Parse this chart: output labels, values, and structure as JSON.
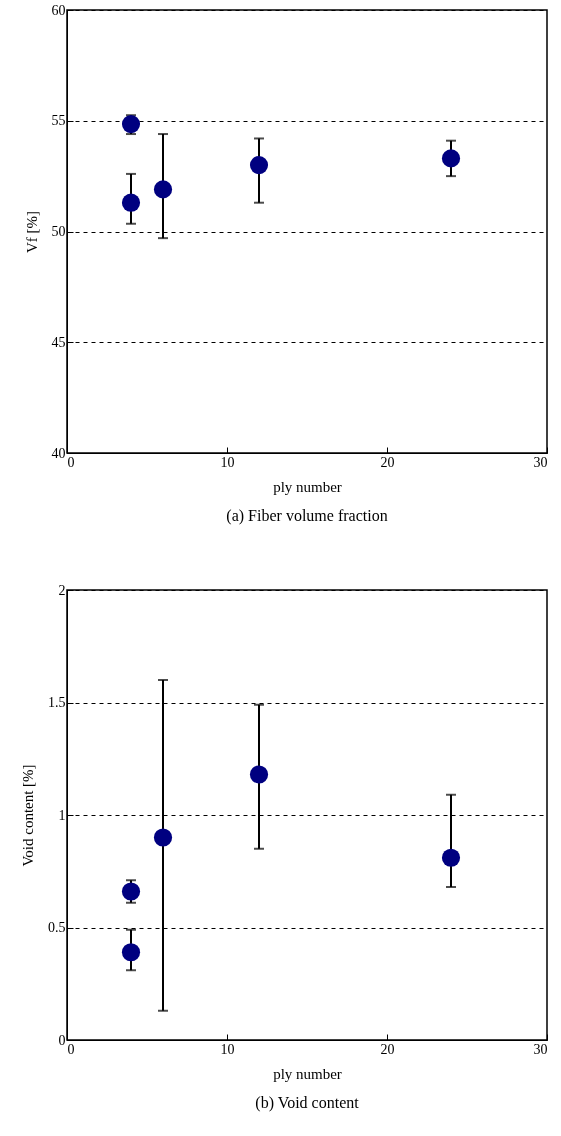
{
  "chart_data": [
    {
      "type": "scatter",
      "title": "(a) Fiber volume fraction",
      "xlabel": "ply number",
      "ylabel": "Vf [%]",
      "x": [
        4,
        4,
        6,
        12,
        24
      ],
      "series": [
        {
          "color": "#000080",
          "values": [
            54.85,
            51.3,
            51.9,
            53.0,
            53.3
          ],
          "errors": [
            [
              54.4,
              55.25
            ],
            [
              50.35,
              52.6
            ],
            [
              49.7,
              54.4
            ],
            [
              51.3,
              54.2
            ],
            [
              52.5,
              54.1
            ]
          ]
        }
      ],
      "xlim": [
        0,
        30
      ],
      "xticks": [
        0,
        10,
        20,
        30
      ],
      "ylim": [
        40,
        60
      ],
      "yticks": [
        40,
        45,
        50,
        55,
        60
      ],
      "grid": "y",
      "marker": "circle"
    },
    {
      "type": "scatter",
      "title": "(b) Void content",
      "xlabel": "ply number",
      "ylabel": "Void content [%]",
      "x": [
        4,
        4,
        6,
        12,
        24
      ],
      "series": [
        {
          "color": "#000080",
          "values": [
            0.39,
            0.66,
            0.9,
            1.18,
            0.81
          ],
          "errors": [
            [
              0.31,
              0.49
            ],
            [
              0.61,
              0.71
            ],
            [
              0.13,
              1.6
            ],
            [
              0.85,
              1.49
            ],
            [
              0.68,
              1.09
            ]
          ]
        }
      ],
      "xlim": [
        0,
        30
      ],
      "xticks": [
        0,
        10,
        20,
        30
      ],
      "ylim": [
        0,
        2
      ],
      "yticks": [
        0,
        0.5,
        1,
        1.5,
        2
      ],
      "grid": "y",
      "marker": "circle"
    }
  ]
}
